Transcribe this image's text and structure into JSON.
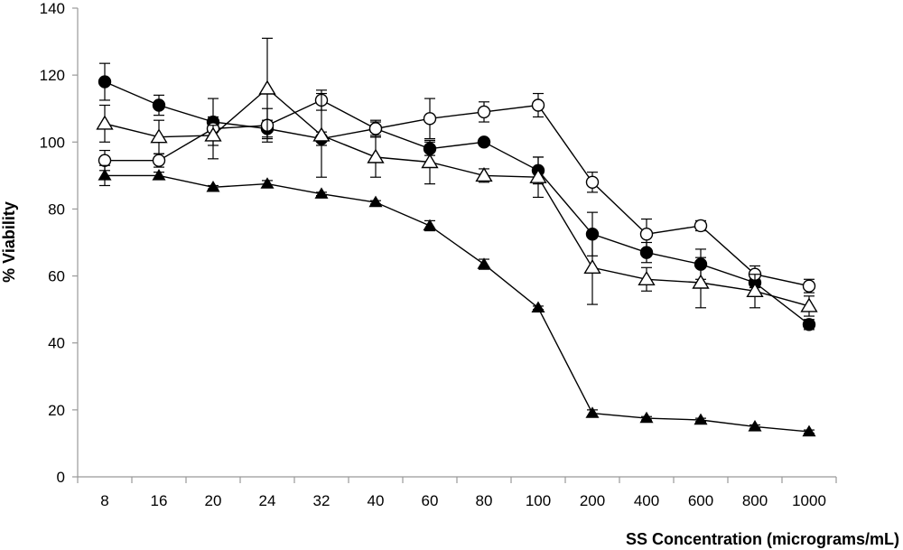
{
  "chart_data": {
    "type": "line",
    "title": "",
    "xlabel": "SS Concentration (micrograms/mL)",
    "ylabel": "% Viability",
    "categories": [
      "8",
      "16",
      "20",
      "24",
      "32",
      "40",
      "60",
      "80",
      "100",
      "200",
      "400",
      "600",
      "800",
      "1000"
    ],
    "ylim": [
      0,
      140
    ],
    "yticks": [
      0,
      20,
      40,
      60,
      80,
      100,
      120,
      140
    ],
    "grid": false,
    "legend": "none",
    "series": [
      {
        "name": "filled circle",
        "marker": "circle",
        "fill": "#000000",
        "values": [
          118,
          111,
          106,
          104,
          101,
          104,
          98,
          100,
          91.5,
          72.5,
          67,
          63.5,
          58,
          45.5
        ],
        "errors": [
          5.5,
          3,
          1.5,
          2.5,
          2,
          2,
          2,
          1,
          4,
          6.5,
          3,
          4.5,
          1.5,
          1.5
        ]
      },
      {
        "name": "open circle",
        "marker": "circle",
        "fill": "#ffffff",
        "values": [
          94.5,
          94.5,
          104,
          105,
          112.5,
          104,
          107,
          109,
          111,
          88,
          72.5,
          75,
          60.5,
          57
        ],
        "errors": [
          3,
          2,
          9,
          5,
          3,
          2.5,
          6,
          3,
          3.5,
          3,
          4.5,
          1.5,
          2.5,
          2
        ]
      },
      {
        "name": "open triangle",
        "marker": "triangle",
        "fill": "#ffffff",
        "values": [
          105.5,
          101.5,
          102,
          116,
          102,
          95.5,
          94,
          90,
          89.5,
          62.5,
          59,
          58,
          55.5,
          51
        ],
        "errors": [
          5.5,
          5,
          3,
          15,
          12.5,
          6,
          6.5,
          2,
          6,
          11,
          3.5,
          7.5,
          5,
          3
        ]
      },
      {
        "name": "filled triangle",
        "marker": "triangle",
        "fill": "#000000",
        "values": [
          90,
          90,
          86.5,
          87.5,
          84.5,
          82,
          75,
          63.5,
          50.5,
          19,
          17.5,
          17,
          15,
          13.5
        ],
        "errors": [
          3,
          1,
          0.5,
          1,
          0.5,
          0.5,
          1.5,
          1.5,
          0.5,
          1,
          0.5,
          0.5,
          0.5,
          0.5
        ]
      }
    ]
  }
}
